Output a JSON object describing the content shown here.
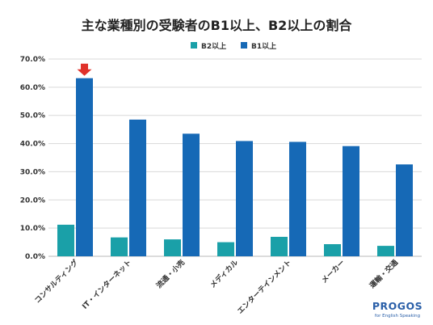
{
  "chart_data": {
    "type": "bar",
    "title": "主な業種別の受験者のB1以上、B2以上の割合",
    "categories": [
      "コンサルティング",
      "IT・インターネット",
      "流通・小売",
      "メディカル",
      "エンターテインメント",
      "メーカー",
      "運輸・交通"
    ],
    "series": [
      {
        "name": "B2以上",
        "color": "#1aa0a8",
        "values": [
          11.2,
          6.7,
          6.0,
          5.0,
          6.9,
          4.3,
          3.7
        ]
      },
      {
        "name": "B1以上",
        "color": "#1669b6",
        "values": [
          63.2,
          48.5,
          43.5,
          40.9,
          40.6,
          39.1,
          32.6
        ]
      }
    ],
    "ylim": [
      0,
      70
    ],
    "yticks": [
      "0.0%",
      "10.0%",
      "20.0%",
      "30.0%",
      "40.0%",
      "50.0%",
      "60.0%",
      "70.0%"
    ],
    "grid": true,
    "legend": "top-center",
    "highlight": {
      "category": "コンサルティング",
      "series": "B1以上",
      "marker": "arrow-down-icon",
      "color": "#e0312a"
    }
  },
  "brand": {
    "name": "PROGOS",
    "tagline": "for English Speaking"
  }
}
